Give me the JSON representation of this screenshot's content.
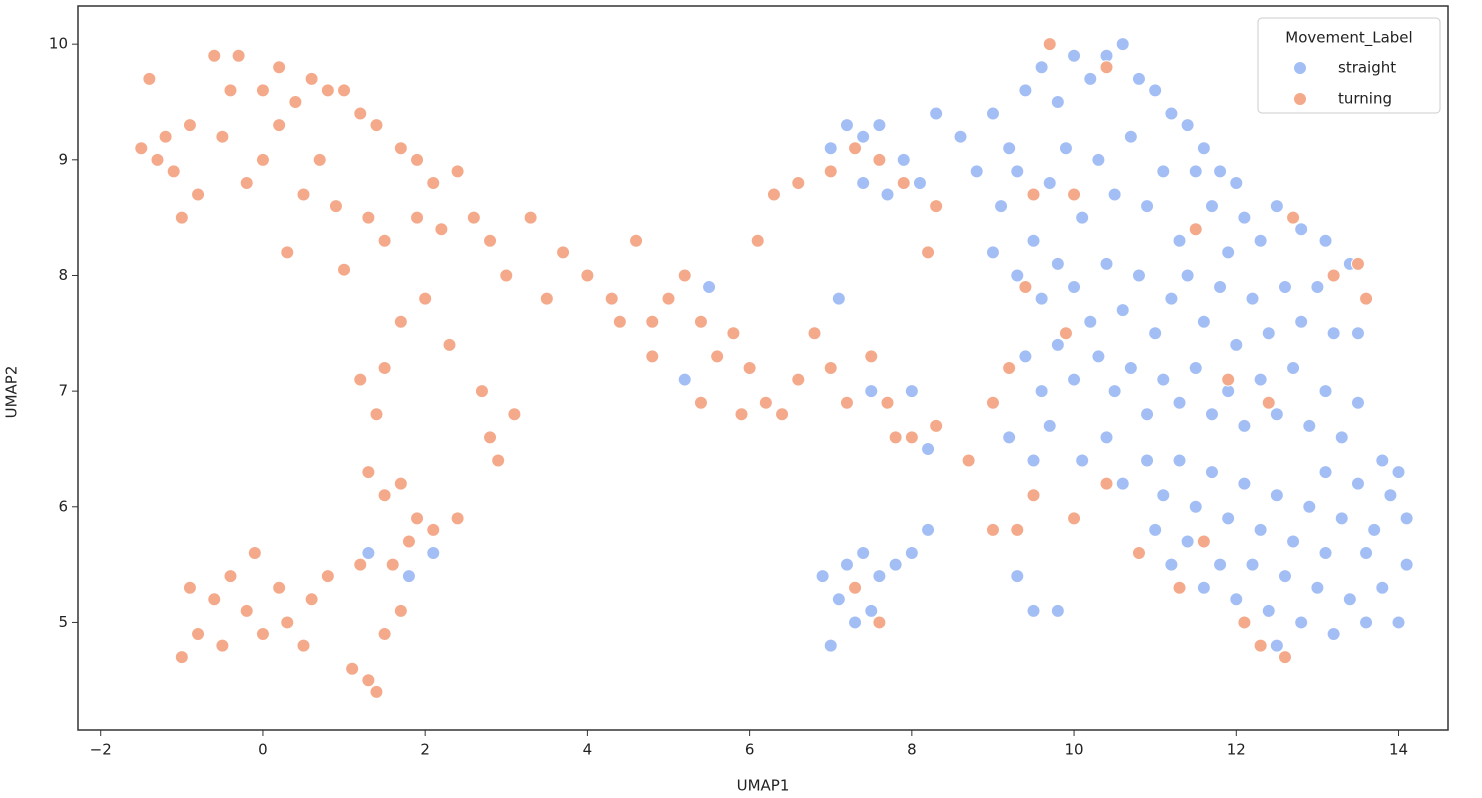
{
  "chart_data": {
    "type": "scatter",
    "x_label": "UMAP1",
    "y_label": "UMAP2",
    "legend_title": "Movement_Label",
    "legend": "upper right",
    "xlim": [
      -2.28,
      14.61
    ],
    "ylim": [
      4.07,
      10.33
    ],
    "xticks": [
      {
        "value": -2,
        "label": "−2"
      },
      0,
      2,
      4,
      6,
      8,
      10,
      12,
      14
    ],
    "yticks": [
      5,
      6,
      7,
      8,
      9,
      10
    ],
    "series": [
      {
        "name": "straight",
        "color": "#a3bef5",
        "x": [
          9.0,
          9.2,
          9.4,
          9.6,
          9.8,
          10.0,
          10.2,
          10.4,
          10.6,
          10.8,
          11.0,
          11.2,
          11.4,
          11.6,
          11.8,
          12.0,
          9.1,
          9.3,
          9.5,
          9.7,
          9.9,
          10.1,
          10.3,
          10.5,
          10.7,
          10.9,
          11.1,
          11.3,
          11.5,
          11.7,
          11.9,
          12.1,
          12.3,
          12.5,
          12.8,
          13.1,
          13.4,
          8.6,
          8.8,
          9.0,
          9.3,
          9.6,
          9.8,
          10.0,
          10.2,
          10.4,
          10.6,
          10.8,
          11.0,
          11.2,
          11.4,
          11.6,
          11.8,
          12.0,
          12.2,
          12.4,
          12.6,
          12.8,
          13.0,
          13.2,
          13.5,
          9.4,
          9.6,
          9.8,
          10.0,
          10.3,
          10.5,
          10.7,
          10.9,
          11.1,
          11.3,
          11.5,
          11.7,
          11.9,
          12.1,
          12.3,
          12.5,
          12.7,
          12.9,
          13.1,
          13.3,
          13.5,
          9.2,
          9.5,
          9.7,
          10.1,
          10.4,
          10.6,
          10.9,
          11.1,
          11.3,
          11.5,
          11.7,
          11.9,
          12.1,
          12.3,
          12.5,
          12.7,
          12.9,
          13.1,
          13.3,
          13.5,
          13.7,
          13.9,
          14.1,
          13.8,
          14.0,
          9.3,
          9.5,
          9.8,
          11.0,
          11.2,
          11.4,
          11.6,
          11.8,
          12.0,
          12.2,
          12.4,
          12.6,
          12.8,
          13.0,
          13.2,
          13.4,
          13.6,
          13.8,
          14.0,
          14.1,
          12.5,
          13.1,
          13.6,
          7.0,
          7.1,
          7.2,
          7.4,
          7.6,
          7.8,
          8.0,
          8.2,
          7.3,
          7.5,
          6.9,
          7.0,
          7.2,
          7.4,
          7.6,
          7.9,
          8.1,
          8.3,
          7.4,
          7.7,
          6.8,
          7.1,
          7.0,
          7.5,
          8.0,
          8.2,
          5.5,
          5.2,
          2.1,
          1.8,
          1.3
        ],
        "values": [
          9.4,
          9.1,
          9.6,
          9.8,
          9.5,
          9.9,
          9.7,
          9.9,
          10.0,
          9.7,
          9.6,
          9.4,
          9.3,
          9.1,
          8.9,
          8.8,
          8.6,
          8.9,
          8.3,
          8.8,
          9.1,
          8.5,
          9.0,
          8.7,
          9.2,
          8.6,
          8.9,
          8.3,
          8.9,
          8.6,
          8.2,
          8.5,
          8.3,
          8.6,
          8.4,
          8.3,
          8.1,
          9.2,
          8.9,
          8.2,
          8.0,
          7.8,
          8.1,
          7.9,
          7.6,
          8.1,
          7.7,
          8.0,
          7.5,
          7.8,
          8.0,
          7.6,
          7.9,
          7.4,
          7.8,
          7.5,
          7.9,
          7.6,
          7.9,
          7.5,
          7.5,
          7.3,
          7.0,
          7.4,
          7.1,
          7.3,
          7.0,
          7.2,
          6.8,
          7.1,
          6.9,
          7.2,
          6.8,
          7.0,
          6.7,
          7.1,
          6.8,
          7.2,
          6.7,
          7.0,
          6.6,
          6.9,
          6.6,
          6.4,
          6.7,
          6.4,
          6.6,
          6.2,
          6.4,
          6.1,
          6.4,
          6.0,
          6.3,
          5.9,
          6.2,
          5.8,
          6.1,
          5.7,
          6.0,
          6.3,
          5.9,
          6.2,
          5.8,
          6.1,
          5.9,
          6.4,
          6.3,
          5.4,
          5.1,
          5.1,
          5.8,
          5.5,
          5.7,
          5.3,
          5.5,
          5.2,
          5.5,
          5.1,
          5.4,
          5.0,
          5.3,
          4.9,
          5.2,
          5.0,
          5.3,
          5.0,
          5.5,
          4.8,
          5.6,
          5.6,
          4.8,
          5.2,
          5.5,
          5.6,
          5.4,
          5.5,
          5.6,
          5.8,
          5.0,
          5.1,
          5.4,
          9.1,
          9.3,
          9.2,
          9.3,
          9.0,
          8.8,
          9.4,
          8.8,
          8.7,
          7.5,
          7.8,
          7.2,
          7.0,
          7.0,
          6.5,
          7.9,
          7.1,
          5.6,
          5.4,
          5.6
        ]
      },
      {
        "name": "turning",
        "color": "#f4a98a",
        "x": [
          -1.5,
          -1.3,
          -1.2,
          -1.0,
          -0.9,
          -0.8,
          -0.6,
          -0.4,
          -0.3,
          0,
          0.2,
          0.4,
          0.6,
          0.8,
          1.0,
          1.2,
          1.4,
          1.7,
          1.9,
          2.1,
          -1.4,
          -1.1,
          -0.5,
          -0.2,
          0,
          0.2,
          0.5,
          0.7,
          0.3,
          0.9,
          1.0,
          1.3,
          1.5,
          1.7,
          1.9,
          2.2,
          2.4,
          2.6,
          2.8,
          3.0,
          3.3,
          3.5,
          3.7,
          4.0,
          4.3,
          4.6,
          4.8,
          5.0,
          5.2,
          5.4,
          5.6,
          5.8,
          6.0,
          6.2,
          6.4,
          6.6,
          6.8,
          7.0,
          7.2,
          7.5,
          7.7,
          8.0,
          8.3,
          8.2,
          8.3,
          6.3,
          6.6,
          7.0,
          7.3,
          7.6,
          7.9,
          6.1,
          5.4,
          5.9,
          4.8,
          4.4,
          2.7,
          2.9,
          3.1,
          2.8,
          1.2,
          1.5,
          1.4,
          2.3,
          2.0,
          -1.0,
          -0.8,
          -0.6,
          -0.4,
          -0.2,
          -0.1,
          0,
          0.2,
          0.3,
          0.5,
          0.6,
          0.8,
          -0.9,
          -0.5,
          1.3,
          1.5,
          1.7,
          1.9,
          2.1,
          2.4,
          1.6,
          1.8,
          1.2,
          1.3,
          1.1,
          1.4,
          1.5,
          1.7,
          9.7,
          10.4,
          9.5,
          10.0,
          9.2,
          9.0,
          8.7,
          9.0,
          9.5,
          10.0,
          10.4,
          10.8,
          11.3,
          11.6,
          12.1,
          12.3,
          12.6,
          11.5,
          12.7,
          13.2,
          13.6,
          13.5,
          12.4,
          11.9,
          9.9,
          9.4,
          9.3,
          7.3,
          7.6,
          7.8
        ],
        "values": [
          9.1,
          9.0,
          9.2,
          8.5,
          9.3,
          8.7,
          9.9,
          9.6,
          9.9,
          9.6,
          9.8,
          9.5,
          9.7,
          9.6,
          9.6,
          9.4,
          9.3,
          9.1,
          9.0,
          8.8,
          9.7,
          8.9,
          9.2,
          8.8,
          9.0,
          9.3,
          8.7,
          9.0,
          8.2,
          8.6,
          8.05,
          8.5,
          8.3,
          7.6,
          8.5,
          8.4,
          8.9,
          8.5,
          8.3,
          8.0,
          8.5,
          7.8,
          8.2,
          8.0,
          7.8,
          8.3,
          7.6,
          7.8,
          8.0,
          7.6,
          7.3,
          7.5,
          7.2,
          6.9,
          6.8,
          7.1,
          7.5,
          7.2,
          6.9,
          7.3,
          6.9,
          6.6,
          6.7,
          8.2,
          8.6,
          8.7,
          8.8,
          8.9,
          9.1,
          9.0,
          8.8,
          8.3,
          6.9,
          6.8,
          7.3,
          7.6,
          7.0,
          6.4,
          6.8,
          6.6,
          7.1,
          7.2,
          6.8,
          7.4,
          7.8,
          4.7,
          4.9,
          5.2,
          5.4,
          5.1,
          5.6,
          4.9,
          5.3,
          5.0,
          4.8,
          5.2,
          5.4,
          5.3,
          4.8,
          6.3,
          6.1,
          6.2,
          5.9,
          5.8,
          5.9,
          5.5,
          5.7,
          5.5,
          4.5,
          4.6,
          4.4,
          4.9,
          5.1,
          10.0,
          9.8,
          8.7,
          8.7,
          7.2,
          6.9,
          6.4,
          5.8,
          6.1,
          5.9,
          6.2,
          5.6,
          5.3,
          5.7,
          5.0,
          4.8,
          4.7,
          8.4,
          8.5,
          8.0,
          7.8,
          8.1,
          6.9,
          7.1,
          7.5,
          7.9,
          5.8,
          5.3,
          5.0,
          6.6
        ]
      }
    ]
  }
}
